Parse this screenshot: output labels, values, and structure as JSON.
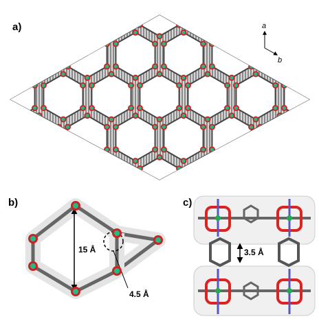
{
  "labels": {
    "panel_a": "a)",
    "panel_b": "b)",
    "panel_c": "c)"
  },
  "axes": {
    "a": "a",
    "b": "b"
  },
  "dimensions": {
    "pore_width": "15 Å",
    "pocket": "4.5 Å",
    "stacking": "3.5 Å"
  }
}
